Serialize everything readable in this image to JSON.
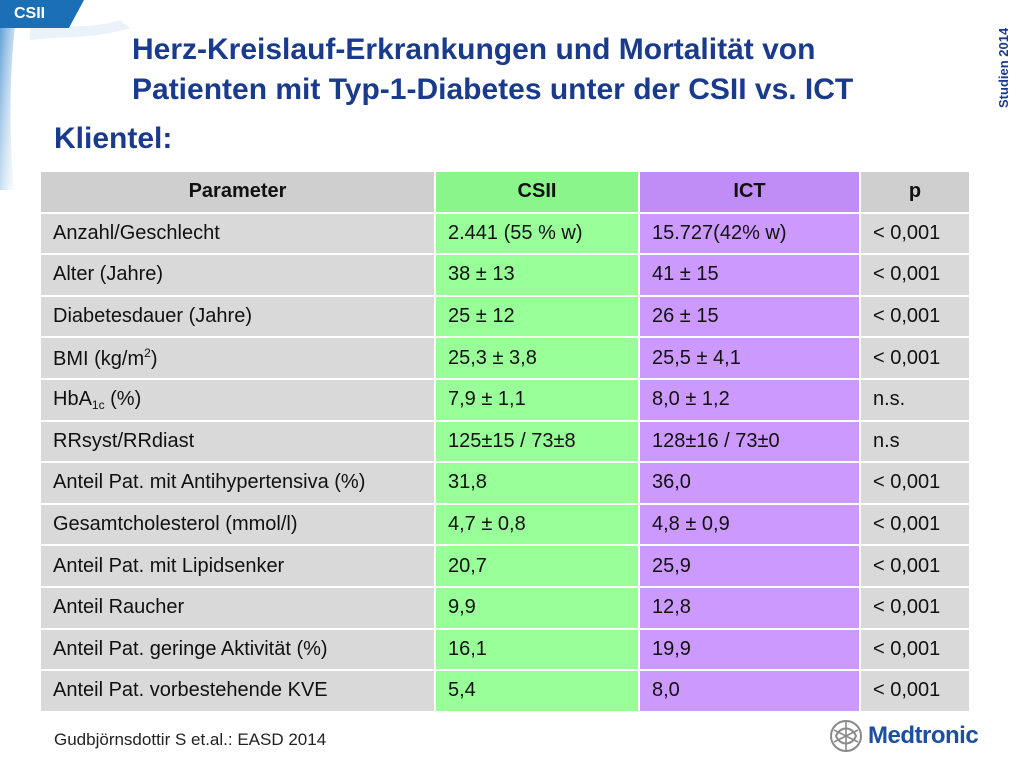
{
  "tag": "CSII",
  "title": {
    "line1": "Herz-Kreislauf-Erkrankungen und Mortalität von",
    "line2": "Patienten mit Typ-1-Diabetes unter der CSII vs. ICT"
  },
  "side_label": "Studien 2014",
  "subtitle": "Klientel:",
  "table": {
    "headers": [
      "Parameter",
      "CSII",
      "ICT",
      "p"
    ],
    "rows": [
      {
        "param": "Anzahl/Geschlecht",
        "csii": "2.441 (55 % w)",
        "ict": "15.727(42% w)",
        "p": "< 0,001"
      },
      {
        "param": "Alter (Jahre)",
        "csii": "38 ± 13",
        "ict": "41 ± 15",
        "p": "< 0,001"
      },
      {
        "param": "Diabetesdauer (Jahre)",
        "csii": "25 ± 12",
        "ict": "26 ± 15",
        "p": "< 0,001"
      },
      {
        "param_pre": "BMI (kg/m",
        "param_sup": "2",
        "param_post": ")",
        "csii": "25,3 ± 3,8",
        "ict": "25,5 ± 4,1",
        "p": "< 0,001"
      },
      {
        "param_pre": "HbA",
        "param_sub": "1c",
        "param_post": " (%)",
        "csii": "7,9 ± 1,1",
        "ict": "8,0 ± 1,2",
        "p": "n.s."
      },
      {
        "param": "RRsyst/RRdiast",
        "csii": "125±15 / 73±8",
        "ict": "128±16 / 73±0",
        "p": "n.s"
      },
      {
        "param": "Anteil Pat. mit Antihypertensiva (%)",
        "csii": "31,8",
        "ict": "36,0",
        "p": "< 0,001"
      },
      {
        "param": "Gesamtcholesterol (mmol/l)",
        "csii": "4,7 ± 0,8",
        "ict": "4,8 ± 0,9",
        "p": "< 0,001"
      },
      {
        "param": "Anteil Pat. mit Lipidsenker",
        "csii": "20,7",
        "ict": "25,9",
        "p": "< 0,001"
      },
      {
        "param": "Anteil Raucher",
        "csii": "9,9",
        "ict": "12,8",
        "p": "< 0,001"
      },
      {
        "param": "Anteil Pat. geringe Aktivität (%)",
        "csii": "16,1",
        "ict": "19,9",
        "p": "< 0,001"
      },
      {
        "param": "Anteil Pat. vorbestehende KVE",
        "csii": "5,4",
        "ict": "8,0",
        "p": "< 0,001"
      }
    ]
  },
  "footer": {
    "reference": "Gudbjörnsdottir S et.al.: EASD 2014",
    "logo_text": "Medtronic",
    "logo_icon": "medtronic-logo-icon"
  },
  "colors": {
    "title": "#1a3a8c",
    "csii_column": "#99ff99",
    "ict_column": "#cc99ff",
    "neutral_column": "#d9d9d9",
    "tag": "#1b6fb5"
  }
}
